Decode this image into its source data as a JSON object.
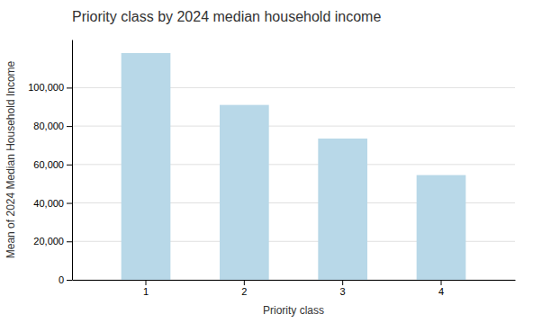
{
  "chart_data": {
    "type": "bar",
    "title": "Priority class by 2024 median household income",
    "x_label": "Priority class",
    "y_label": "Mean of 2024 Median Household Income",
    "categories": [
      "1",
      "2",
      "3",
      "4"
    ],
    "values": [
      118000,
      91000,
      73500,
      54500
    ],
    "color": "#b8d8e8",
    "ylim": [
      0,
      125000
    ],
    "yticks": [
      0,
      {
        "value": 20000,
        "label": "20,000"
      },
      {
        "value": 40000,
        "label": "40,000"
      },
      {
        "value": 60000,
        "label": "60,000"
      },
      {
        "value": 80000,
        "label": "80,000"
      },
      {
        "value": 100000,
        "label": "100,000"
      }
    ],
    "grid": true
  }
}
